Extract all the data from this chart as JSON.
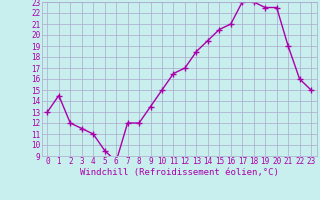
{
  "x": [
    0,
    1,
    2,
    3,
    4,
    5,
    6,
    7,
    8,
    9,
    10,
    11,
    12,
    13,
    14,
    15,
    16,
    17,
    18,
    19,
    20,
    21,
    22,
    23
  ],
  "y": [
    13,
    14.5,
    12,
    11.5,
    11,
    9.5,
    8.5,
    12,
    12,
    13.5,
    15,
    16.5,
    17,
    18.5,
    19.5,
    20.5,
    21,
    23,
    23,
    22.5,
    22.5,
    19,
    16,
    15
  ],
  "line_color": "#aa00aa",
  "marker": "+",
  "marker_size": 4,
  "bg_color": "#c8eeee",
  "grid_color": "#aaaacc",
  "xlabel": "Windchill (Refroidissement éolien,°C)",
  "xlabel_color": "#aa00aa",
  "tick_color": "#aa00aa",
  "ylim": [
    9,
    23
  ],
  "xlim": [
    -0.5,
    23.5
  ],
  "yticks": [
    9,
    10,
    11,
    12,
    13,
    14,
    15,
    16,
    17,
    18,
    19,
    20,
    21,
    22,
    23
  ],
  "xticks": [
    0,
    1,
    2,
    3,
    4,
    5,
    6,
    7,
    8,
    9,
    10,
    11,
    12,
    13,
    14,
    15,
    16,
    17,
    18,
    19,
    20,
    21,
    22,
    23
  ],
  "tick_fontsize": 5.5,
  "xlabel_fontsize": 6.5,
  "line_width": 1.0,
  "marker_linewidth": 1.0
}
